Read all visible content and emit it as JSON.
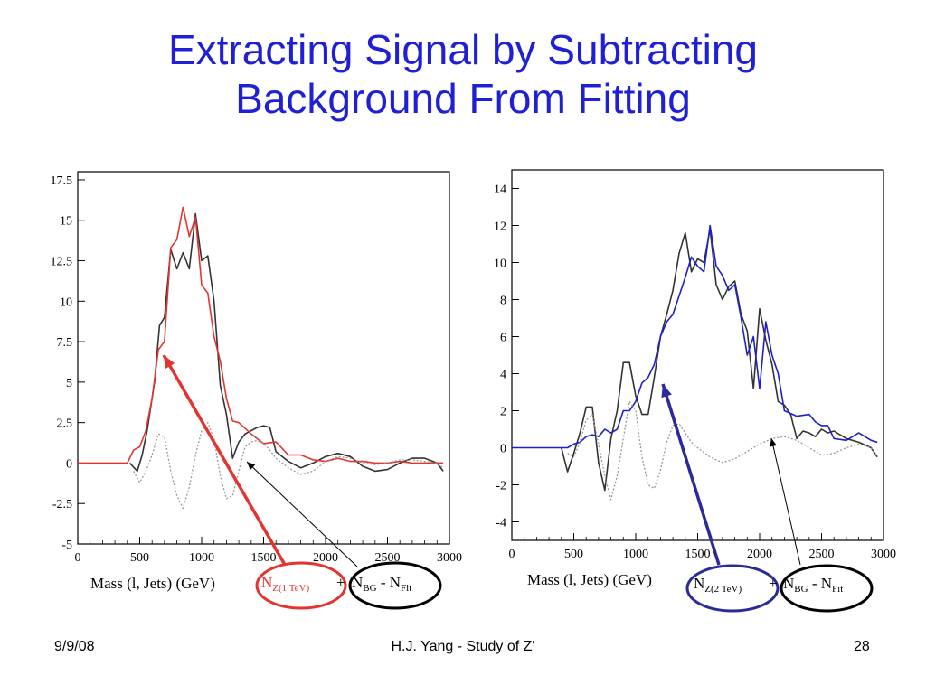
{
  "slide": {
    "title_line1": "Extracting Signal by Subtracting",
    "title_line2": "Background From Fitting",
    "footer_date": "9/9/08",
    "footer_center": "H.J. Yang - Study of Z'",
    "footer_page": "28"
  },
  "colors": {
    "title": "#1f1fd6",
    "total": "#333333",
    "signal_1tev": "#e3342f",
    "signal_2tev": "#1f1fcc",
    "fit": "#999999"
  },
  "chart_data": [
    {
      "type": "line",
      "xlabel": "Mass (l, Jets) (GeV)",
      "xlim": [
        0,
        3000
      ],
      "ylim": [
        -5,
        18
      ],
      "xticks": [
        "0",
        "500",
        "1000",
        "1500",
        "2000",
        "2500",
        "3000"
      ],
      "yticks": [
        "-5",
        "-2.5",
        "0",
        "2.5",
        "5",
        "7.5",
        "10",
        "12.5",
        "15",
        "17.5"
      ],
      "series": [
        {
          "role": "total",
          "color": "#333333",
          "dash": "",
          "x": [
            420,
            480,
            520,
            560,
            620,
            660,
            700,
            750,
            800,
            850,
            900,
            950,
            1000,
            1050,
            1100,
            1150,
            1200,
            1250,
            1300,
            1350,
            1400,
            1450,
            1500,
            1550,
            1600,
            1700,
            1800,
            1900,
            2000,
            2100,
            2200,
            2300,
            2400,
            2500,
            2600,
            2700,
            2800,
            2900,
            2950
          ],
          "y": [
            0,
            -0.5,
            0.5,
            2,
            5,
            8.5,
            9,
            13.2,
            12,
            13,
            12,
            15.4,
            12.5,
            12.8,
            10,
            4.8,
            3,
            0.3,
            1.3,
            1.8,
            2,
            2.2,
            2.3,
            2.2,
            0.7,
            0.1,
            -0.3,
            0,
            0.4,
            0.6,
            0.4,
            -0.2,
            -0.5,
            -0.4,
            0,
            0.3,
            0.3,
            0,
            -0.5
          ]
        },
        {
          "role": "signal",
          "name": "N_Z(1 TeV)",
          "color": "#e3342f",
          "dash": "",
          "x": [
            0,
            400,
            450,
            500,
            550,
            600,
            650,
            700,
            750,
            800,
            850,
            900,
            950,
            1000,
            1050,
            1100,
            1150,
            1200,
            1250,
            1300,
            1400,
            1500,
            1600,
            1700,
            1800,
            1900,
            2000,
            2100,
            2200,
            2300,
            2400,
            2500,
            2600,
            2700,
            2800,
            2900,
            2950
          ],
          "y": [
            0,
            0,
            0.8,
            1,
            2,
            4,
            7,
            7.5,
            13.3,
            13.8,
            15.8,
            14,
            15.2,
            11,
            10.5,
            7.8,
            6.3,
            4,
            2.6,
            2.5,
            1.8,
            1.2,
            1.3,
            0.5,
            0.5,
            0.2,
            0.1,
            0.3,
            0.1,
            0.1,
            0,
            0,
            0.1,
            0,
            0,
            0,
            0
          ]
        },
        {
          "role": "fit",
          "color": "#999999",
          "dash": "2,2",
          "x": [
            450,
            500,
            550,
            600,
            650,
            700,
            750,
            800,
            850,
            900,
            950,
            1000,
            1050,
            1100,
            1150,
            1200,
            1250,
            1300,
            1350,
            1400,
            1450,
            1500,
            1550,
            1600,
            1700,
            1800,
            1900,
            2000,
            2100,
            2200,
            2300,
            2400,
            2500,
            2600,
            2700,
            2800,
            2900,
            2950
          ],
          "y": [
            -0.5,
            -1.2,
            -0.5,
            0.5,
            1.8,
            1.6,
            -0.5,
            -2,
            -2.8,
            -1.5,
            0.5,
            2,
            2.5,
            1.5,
            -0.8,
            -2.2,
            -2,
            -0.5,
            1,
            1.3,
            1.4,
            1.2,
            0.8,
            0.3,
            -0.3,
            -0.7,
            -0.5,
            0.1,
            0.4,
            0.3,
            0,
            -0.1,
            0,
            0.2,
            0.2,
            0.1,
            0,
            -0.3
          ]
        }
      ],
      "annotations": {
        "signal_label": {
          "main": "N",
          "sub": "Z(1 TeV)",
          "color": "#e3342f"
        },
        "plus": "+",
        "bg_label": {
          "n1": "N",
          "s1": "BG",
          "minus": " - N",
          "s2": "Fit",
          "color": "#000000"
        }
      }
    },
    {
      "type": "line",
      "xlabel": "Mass (l, Jets) (GeV)",
      "xlim": [
        0,
        3000
      ],
      "ylim": [
        -5,
        15
      ],
      "xticks": [
        "0",
        "500",
        "1000",
        "1500",
        "2000",
        "2500",
        "3000"
      ],
      "yticks": [
        "-4",
        "-2",
        "0",
        "2",
        "4",
        "6",
        "8",
        "10",
        "12",
        "14"
      ],
      "series": [
        {
          "role": "total",
          "color": "#333333",
          "dash": "",
          "x": [
            400,
            450,
            500,
            550,
            600,
            650,
            700,
            750,
            800,
            850,
            900,
            950,
            1000,
            1050,
            1100,
            1150,
            1200,
            1250,
            1300,
            1350,
            1400,
            1450,
            1500,
            1550,
            1600,
            1650,
            1700,
            1750,
            1800,
            1850,
            1900,
            1950,
            2000,
            2050,
            2100,
            2150,
            2200,
            2250,
            2300,
            2350,
            2400,
            2450,
            2500,
            2550,
            2600,
            2700,
            2800,
            2900,
            2950
          ],
          "y": [
            0,
            -1.3,
            -0.3,
            0.8,
            2.2,
            2.2,
            -0.8,
            -2.3,
            0.5,
            2,
            4.6,
            4.6,
            2.8,
            1.8,
            1.8,
            3.8,
            6,
            7.2,
            8.5,
            10.5,
            11.6,
            9.5,
            10.2,
            10,
            11.8,
            8.8,
            8,
            8.7,
            9,
            7.2,
            6.3,
            3.2,
            7.5,
            5.8,
            4.5,
            2.5,
            2.3,
            1.8,
            0.5,
            0.9,
            0.8,
            0.6,
            1,
            0.8,
            0.9,
            0.5,
            0.3,
            0,
            -0.5
          ]
        },
        {
          "role": "signal",
          "name": "N_Z(2 TeV)",
          "color": "#1f1fcc",
          "dash": "",
          "x": [
            0,
            400,
            450,
            500,
            550,
            600,
            650,
            700,
            750,
            800,
            850,
            900,
            950,
            1000,
            1050,
            1100,
            1150,
            1200,
            1250,
            1300,
            1350,
            1400,
            1450,
            1500,
            1550,
            1600,
            1650,
            1700,
            1750,
            1800,
            1850,
            1900,
            1950,
            2000,
            2050,
            2100,
            2150,
            2200,
            2300,
            2400,
            2450,
            2500,
            2550,
            2600,
            2700,
            2800,
            2900,
            2950
          ],
          "y": [
            0,
            0,
            0,
            0.2,
            0.3,
            0.6,
            0.7,
            0.6,
            1,
            0.8,
            1,
            2,
            2,
            2.5,
            3.5,
            3.8,
            4.5,
            6,
            6.8,
            7.2,
            8.2,
            9.2,
            10.3,
            9.8,
            9.5,
            12,
            9.8,
            9.3,
            8.5,
            8.8,
            7,
            5,
            6,
            3.2,
            6.8,
            5,
            4,
            2,
            1.7,
            1.8,
            1.4,
            1.2,
            1.2,
            0.5,
            0.4,
            0.8,
            0.4,
            0.3
          ]
        },
        {
          "role": "fit",
          "color": "#999999",
          "dash": "2,2",
          "x": [
            450,
            500,
            550,
            600,
            650,
            700,
            750,
            800,
            850,
            900,
            950,
            1000,
            1050,
            1100,
            1150,
            1200,
            1250,
            1300,
            1350,
            1400,
            1450,
            1500,
            1600,
            1700,
            1800,
            1900,
            2000,
            2100,
            2200,
            2300,
            2400,
            2500,
            2600,
            2700,
            2800,
            2900,
            2950
          ],
          "y": [
            -0.3,
            -0.5,
            0.3,
            1.5,
            1.8,
            0.2,
            -1.5,
            -2.8,
            -1.5,
            0.5,
            2.5,
            2,
            -0.5,
            -2,
            -2.2,
            -1.2,
            0.3,
            1.2,
            1.3,
            0.8,
            0.3,
            0,
            -0.5,
            -0.8,
            -0.6,
            -0.2,
            0.2,
            0.5,
            0.6,
            0.4,
            0,
            -0.4,
            -0.3,
            0,
            0.2,
            0,
            -0.5
          ]
        }
      ],
      "annotations": {
        "signal_label": {
          "main": "N",
          "sub": "Z(2 TeV)",
          "color": "#000000"
        },
        "plus": "+",
        "bg_label": {
          "n1": "N",
          "s1": "BG",
          "minus": " - N",
          "s2": "Fit",
          "color": "#000000"
        }
      }
    }
  ]
}
